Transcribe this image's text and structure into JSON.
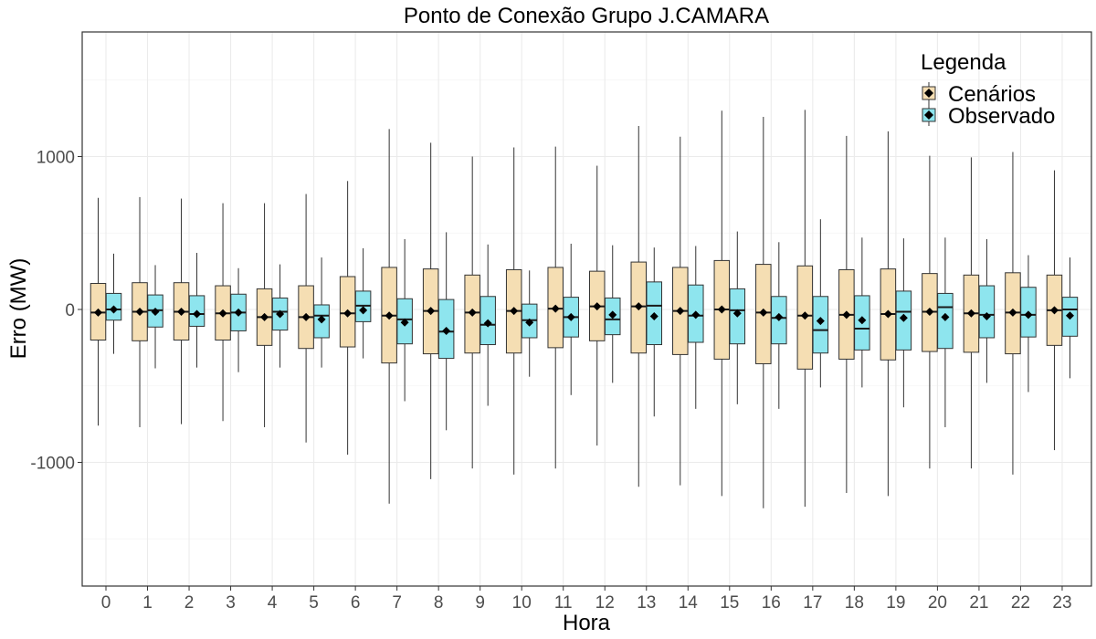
{
  "chart_data": {
    "type": "boxplot",
    "title": "Ponto de Conexão Grupo J.CAMARA",
    "xlabel": "Hora",
    "ylabel": "Erro (MW)",
    "ylim": [
      -1800,
      1800
    ],
    "y_ticks": [
      1000,
      0,
      -1000
    ],
    "y_tick_labels": [
      "1000",
      "0",
      "-1000"
    ],
    "categories": [
      "0",
      "1",
      "2",
      "3",
      "4",
      "5",
      "6",
      "7",
      "8",
      "9",
      "10",
      "11",
      "12",
      "13",
      "14",
      "15",
      "16",
      "17",
      "18",
      "19",
      "20",
      "21",
      "22",
      "23"
    ],
    "grid": true,
    "legend": {
      "title": "Legenda",
      "position": "top-right",
      "entries": [
        "Cenários",
        "Observado"
      ]
    },
    "series": [
      {
        "name": "Cenários",
        "color": "#f5deb3",
        "stats": [
          {
            "min": -760,
            "q1": -200,
            "median": -20,
            "q3": 170,
            "max": 730,
            "mean": -20
          },
          {
            "min": -770,
            "q1": -205,
            "median": -15,
            "q3": 175,
            "max": 735,
            "mean": -15
          },
          {
            "min": -750,
            "q1": -200,
            "median": -15,
            "q3": 175,
            "max": 725,
            "mean": -15
          },
          {
            "min": -730,
            "q1": -200,
            "median": -25,
            "q3": 155,
            "max": 695,
            "mean": -25
          },
          {
            "min": -770,
            "q1": -235,
            "median": -50,
            "q3": 135,
            "max": 695,
            "mean": -50
          },
          {
            "min": -870,
            "q1": -255,
            "median": -50,
            "q3": 155,
            "max": 755,
            "mean": -50
          },
          {
            "min": -950,
            "q1": -245,
            "median": -25,
            "q3": 215,
            "max": 840,
            "mean": -25
          },
          {
            "min": -1270,
            "q1": -350,
            "median": -40,
            "q3": 275,
            "max": 1180,
            "mean": -40
          },
          {
            "min": -1110,
            "q1": -290,
            "median": -10,
            "q3": 265,
            "max": 1090,
            "mean": -10
          },
          {
            "min": -1040,
            "q1": -285,
            "median": -20,
            "q3": 225,
            "max": 1000,
            "mean": -20
          },
          {
            "min": -1080,
            "q1": -285,
            "median": -10,
            "q3": 260,
            "max": 1060,
            "mean": -10
          },
          {
            "min": -1040,
            "q1": -250,
            "median": 5,
            "q3": 275,
            "max": 1065,
            "mean": 5
          },
          {
            "min": -890,
            "q1": -205,
            "median": 20,
            "q3": 250,
            "max": 940,
            "mean": 20
          },
          {
            "min": -1160,
            "q1": -285,
            "median": 20,
            "q3": 310,
            "max": 1200,
            "mean": 20
          },
          {
            "min": -1150,
            "q1": -295,
            "median": -10,
            "q3": 275,
            "max": 1130,
            "mean": -10
          },
          {
            "min": -1220,
            "q1": -325,
            "median": 0,
            "q3": 320,
            "max": 1300,
            "mean": 0
          },
          {
            "min": -1300,
            "q1": -355,
            "median": -20,
            "q3": 295,
            "max": 1260,
            "mean": -20
          },
          {
            "min": -1290,
            "q1": -390,
            "median": -40,
            "q3": 285,
            "max": 1305,
            "mean": -40
          },
          {
            "min": -1200,
            "q1": -325,
            "median": -35,
            "q3": 260,
            "max": 1135,
            "mean": -35
          },
          {
            "min": -1220,
            "q1": -330,
            "median": -30,
            "q3": 265,
            "max": 1165,
            "mean": -30
          },
          {
            "min": -1040,
            "q1": -275,
            "median": -15,
            "q3": 235,
            "max": 1005,
            "mean": -15
          },
          {
            "min": -1040,
            "q1": -280,
            "median": -25,
            "q3": 225,
            "max": 995,
            "mean": -25
          },
          {
            "min": -1080,
            "q1": -290,
            "median": -20,
            "q3": 240,
            "max": 1030,
            "mean": -20
          },
          {
            "min": -920,
            "q1": -235,
            "median": -5,
            "q3": 225,
            "max": 910,
            "mean": -5
          }
        ]
      },
      {
        "name": "Observado",
        "color": "#8ee5ee",
        "stats": [
          {
            "min": -290,
            "q1": -70,
            "median": 0,
            "q3": 105,
            "max": 365,
            "mean": 0
          },
          {
            "min": -385,
            "q1": -115,
            "median": -5,
            "q3": 95,
            "max": 290,
            "mean": -15
          },
          {
            "min": -380,
            "q1": -110,
            "median": -30,
            "q3": 90,
            "max": 370,
            "mean": -30
          },
          {
            "min": -410,
            "q1": -140,
            "median": -20,
            "q3": 100,
            "max": 270,
            "mean": -20
          },
          {
            "min": -380,
            "q1": -135,
            "median": -15,
            "q3": 75,
            "max": 295,
            "mean": -30
          },
          {
            "min": -380,
            "q1": -185,
            "median": -40,
            "q3": 30,
            "max": 340,
            "mean": -65
          },
          {
            "min": -320,
            "q1": -80,
            "median": 25,
            "q3": 120,
            "max": 400,
            "mean": -5
          },
          {
            "min": -600,
            "q1": -225,
            "median": -65,
            "q3": 70,
            "max": 460,
            "mean": -85
          },
          {
            "min": -790,
            "q1": -320,
            "median": -145,
            "q3": 65,
            "max": 505,
            "mean": -140
          },
          {
            "min": -630,
            "q1": -230,
            "median": -100,
            "q3": 85,
            "max": 425,
            "mean": -90
          },
          {
            "min": -440,
            "q1": -185,
            "median": -70,
            "q3": 35,
            "max": 255,
            "mean": -85
          },
          {
            "min": -560,
            "q1": -180,
            "median": -50,
            "q3": 80,
            "max": 430,
            "mean": -50
          },
          {
            "min": -480,
            "q1": -165,
            "median": -65,
            "q3": 75,
            "max": 420,
            "mean": -35
          },
          {
            "min": -700,
            "q1": -230,
            "median": 25,
            "q3": 180,
            "max": 405,
            "mean": -45
          },
          {
            "min": -650,
            "q1": -215,
            "median": -40,
            "q3": 160,
            "max": 415,
            "mean": -35
          },
          {
            "min": -620,
            "q1": -225,
            "median": -5,
            "q3": 135,
            "max": 510,
            "mean": -25
          },
          {
            "min": -650,
            "q1": -225,
            "median": -55,
            "q3": 85,
            "max": 440,
            "mean": -50
          },
          {
            "min": -510,
            "q1": -285,
            "median": -135,
            "q3": 85,
            "max": 590,
            "mean": -75
          },
          {
            "min": -510,
            "q1": -265,
            "median": -125,
            "q3": 90,
            "max": 470,
            "mean": -70
          },
          {
            "min": -640,
            "q1": -265,
            "median": -15,
            "q3": 120,
            "max": 465,
            "mean": -55
          },
          {
            "min": -770,
            "q1": -255,
            "median": 15,
            "q3": 105,
            "max": 470,
            "mean": -50
          },
          {
            "min": -480,
            "q1": -185,
            "median": -35,
            "q3": 155,
            "max": 460,
            "mean": -45
          },
          {
            "min": -540,
            "q1": -180,
            "median": -35,
            "q3": 145,
            "max": 355,
            "mean": -35
          },
          {
            "min": -450,
            "q1": -175,
            "median": 0,
            "q3": 80,
            "max": 340,
            "mean": -40
          }
        ]
      }
    ]
  }
}
